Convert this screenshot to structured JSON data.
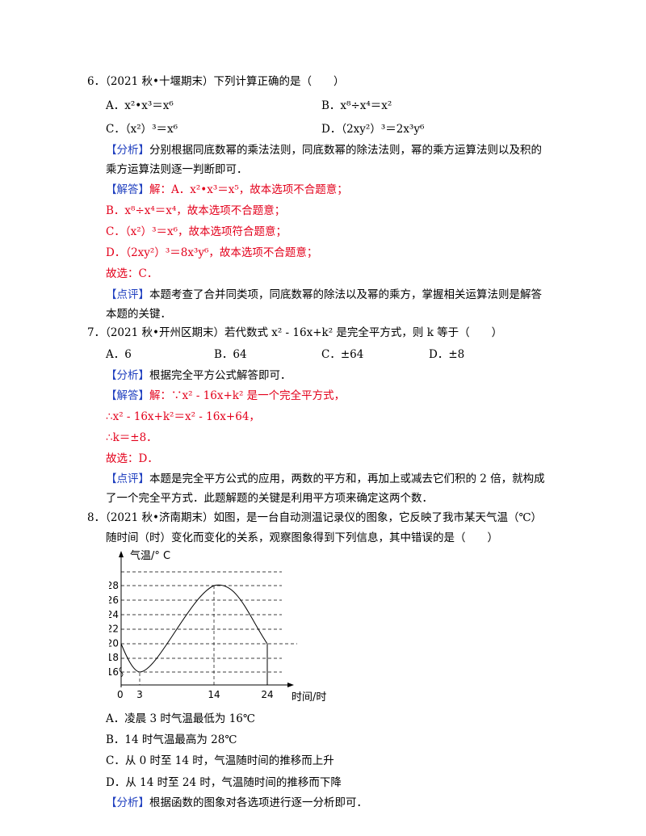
{
  "q6": {
    "stem": "6．（2021 秋•十堰期末）下列计算正确的是（　　）",
    "optA": "A．x²•x³＝x⁶",
    "optB": "B．x⁸÷x⁴＝x²",
    "optC": "C．（x²）³＝x⁶",
    "optD": "D．（2xy²）³＝2x³y⁶",
    "analysis_tag": "【分析】",
    "analysis_1": "分别根据同底数幂的乘法法则，同底数幂的除法法则，幂的乘方运算法则以及积的",
    "analysis_2": "乘方运算法则逐一判断即可．",
    "answer_tag": "【解答】",
    "ans_1": "解：A．x²•x³＝x⁵，故本选项不合题意；",
    "ans_2": "B．x⁸÷x⁴＝x⁴，故本选项不合题意；",
    "ans_3": "C．（x²）³＝x⁶，故本选项符合题意；",
    "ans_4": "D．（2xy²）³＝8x³y⁶，故本选项不合题意；",
    "ans_5": "故选：C．",
    "comment_tag": "【点评】",
    "comment_1": "本题考查了合并同类项，同底数幂的除法以及幂的乘方，掌握相关运算法则是解答",
    "comment_2": "本题的关键．"
  },
  "q7": {
    "stem": "7．（2021 秋•开州区期末）若代数式 x² - 16x+k² 是完全平方式，则 k 等于（　　）",
    "optA": "A．6",
    "optB": "B．64",
    "optC": "C．±64",
    "optD": "D．±8",
    "analysis_tag": "【分析】",
    "analysis_1": "根据完全平方公式解答即可．",
    "answer_tag": "【解答】",
    "ans_1": "解：∵x² - 16x+k² 是一个完全平方式，",
    "ans_2": "∴x² - 16x+k²＝x² - 16x+64，",
    "ans_3": "∴k＝±8．",
    "ans_4": "故选：D．",
    "comment_tag": "【点评】",
    "comment_1": "本题是完全平方公式的应用，两数的平方和，再加上或减去它们积的 2 倍，就构成",
    "comment_2": "了一个完全平方式．此题解题的关键是利用平方项来确定这两个数．"
  },
  "q8": {
    "stem_1": "8．（2021 秋•济南期末）如图，是一台自动测温记录仪的图象，它反映了我市某天气温（℃）",
    "stem_2": "随时间（时）变化而变化的关系，观察图象得到下列信息，其中错误的是（　　）",
    "optA": "A．凌晨 3 时气温最低为 16℃",
    "optB": "B．14 时气温最高为 28℃",
    "optC": "C．从 0 时至 14 时，气温随时间的推移而上升",
    "optD": "D．从 14 时至 24 时，气温随时间的推移而下降",
    "analysis_tag": "【分析】",
    "analysis_1": "根据函数的图象对各选项进行逐一分析即可．"
  },
  "graph": {
    "ylabel": "气温/° C",
    "xlabel": "时间/时",
    "origin": "0",
    "yticks": [
      "28",
      "26",
      "24",
      "22",
      "20",
      "18",
      "16"
    ],
    "xticks": [
      "3",
      "14",
      "24"
    ],
    "points": [
      [
        0,
        20
      ],
      [
        3,
        16
      ],
      [
        14,
        28
      ],
      [
        24,
        20
      ]
    ]
  }
}
